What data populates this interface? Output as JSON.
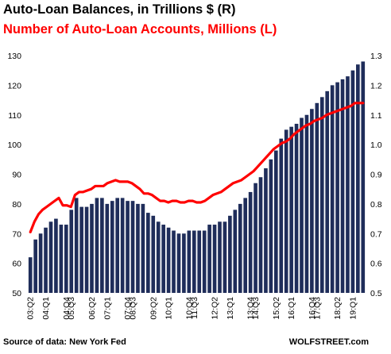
{
  "chart_data": {
    "type": "bar",
    "title": "Auto-Loan Balances, in Trillions $ (R)",
    "subtitle": "Number of Auto-Loan Accounts, Millions (L)",
    "source": "Source of data: New York Fed",
    "brand": "WOLFSTREET.com",
    "colors": {
      "bars": "#1f2d5a",
      "line": "#ff0000",
      "title1": "#000000",
      "title2": "#ff0000"
    },
    "left_axis": {
      "min": 50,
      "max": 130,
      "ticks": [
        "50",
        "60",
        "70",
        "80",
        "90",
        "100",
        "110",
        "120",
        "130"
      ]
    },
    "right_axis": {
      "min": 0.5,
      "max": 1.3,
      "ticks": [
        "0.5",
        "0.6",
        "0.7",
        "0.8",
        "0.9",
        "1.0",
        "1.1",
        "1.2",
        "1.3"
      ]
    },
    "x_tick_labels": [
      {
        "i": 0,
        "label": "03:Q2"
      },
      {
        "i": 3,
        "label": "04:Q1"
      },
      {
        "i": 7,
        "label": "04:Q4"
      },
      {
        "i": 8,
        "label": "05:Q3"
      },
      {
        "i": 12,
        "label": "06:Q2"
      },
      {
        "i": 15,
        "label": "07:Q1"
      },
      {
        "i": 19,
        "label": "07:Q4"
      },
      {
        "i": 20,
        "label": "08:Q3"
      },
      {
        "i": 24,
        "label": "09:Q2"
      },
      {
        "i": 27,
        "label": "10:Q1"
      },
      {
        "i": 31,
        "label": "10:Q4"
      },
      {
        "i": 32,
        "label": "11:Q3"
      },
      {
        "i": 36,
        "label": "12:Q2"
      },
      {
        "i": 39,
        "label": "13:Q1"
      },
      {
        "i": 43,
        "label": "13:Q4"
      },
      {
        "i": 44,
        "label": "14:Q3"
      },
      {
        "i": 48,
        "label": "15:Q2"
      },
      {
        "i": 51,
        "label": "16:Q1"
      },
      {
        "i": 55,
        "label": "16:Q4"
      },
      {
        "i": 56,
        "label": "17:Q3"
      },
      {
        "i": 60,
        "label": "18:Q2"
      },
      {
        "i": 63,
        "label": "19:Q1"
      }
    ],
    "series": [
      {
        "axis": "right",
        "kind": "bar",
        "values": [
          0.62,
          0.68,
          0.7,
          0.72,
          0.74,
          0.75,
          0.73,
          0.73,
          0.78,
          0.82,
          0.79,
          0.79,
          0.8,
          0.82,
          0.82,
          0.8,
          0.81,
          0.82,
          0.82,
          0.81,
          0.81,
          0.8,
          0.8,
          0.77,
          0.76,
          0.74,
          0.73,
          0.72,
          0.71,
          0.7,
          0.7,
          0.71,
          0.71,
          0.71,
          0.71,
          0.73,
          0.73,
          0.74,
          0.74,
          0.76,
          0.78,
          0.8,
          0.82,
          0.84,
          0.87,
          0.89,
          0.92,
          0.95,
          0.98,
          1.02,
          1.05,
          1.06,
          1.07,
          1.09,
          1.1,
          1.12,
          1.14,
          1.16,
          1.18,
          1.2,
          1.21,
          1.22,
          1.23,
          1.25,
          1.27,
          1.28
        ]
      },
      {
        "axis": "left",
        "kind": "line",
        "values": [
          70.5,
          74,
          76.5,
          78,
          79,
          80,
          81,
          82,
          79.5,
          79.5,
          79,
          83,
          84,
          84,
          84.5,
          85,
          86,
          86,
          86,
          87,
          87.5,
          88,
          87.5,
          87.5,
          87.5,
          87,
          86,
          85,
          83.5,
          83.5,
          83,
          82,
          81,
          81,
          80.5,
          81,
          81,
          80.5,
          80.5,
          81,
          81,
          80.5,
          80.5,
          81,
          82,
          83,
          83.5,
          84,
          85,
          86,
          87,
          87.5,
          88,
          89,
          90,
          91,
          92.5,
          94,
          95.5,
          97,
          98.5,
          99.5,
          100.5,
          101,
          102,
          103.5,
          104.5,
          105.5,
          106.5,
          107,
          108,
          108.5,
          109,
          110,
          110.5,
          111,
          111.5,
          112,
          112.5,
          113,
          114,
          114,
          114
        ]
      }
    ]
  }
}
